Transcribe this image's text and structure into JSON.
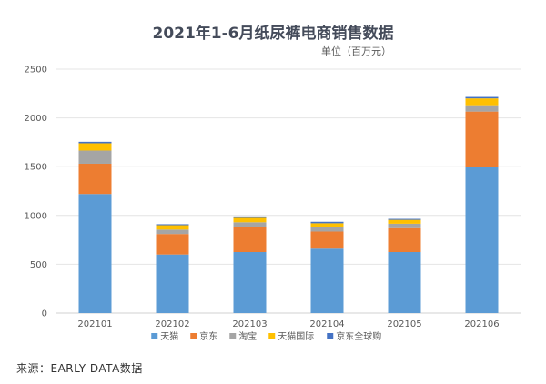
{
  "chart_data": {
    "type": "bar",
    "stacked": true,
    "title": "2021年1-6月纸尿裤电商销售数据",
    "unit": "单位（百万元）",
    "categories": [
      "202101",
      "202102",
      "202103",
      "202104",
      "202105",
      "202106"
    ],
    "y_ticks": [
      "0",
      "500",
      "1000",
      "1500",
      "2000",
      "2500"
    ],
    "ylim": [
      0,
      2500
    ],
    "grid": true,
    "legend_position": "bottom",
    "series": [
      {
        "name": "天猫",
        "color": "#5b9bd5",
        "values": [
          1220,
          600,
          625,
          660,
          625,
          1500
        ]
      },
      {
        "name": "京东",
        "color": "#ed7d31",
        "values": [
          310,
          210,
          260,
          175,
          245,
          565
        ]
      },
      {
        "name": "淘宝",
        "color": "#a5a5a5",
        "values": [
          135,
          45,
          45,
          45,
          45,
          65
        ]
      },
      {
        "name": "天猫国际",
        "color": "#ffc000",
        "values": [
          75,
          45,
          45,
          40,
          40,
          70
        ]
      },
      {
        "name": "京东全球购",
        "color": "#4472c4",
        "values": [
          15,
          10,
          15,
          15,
          10,
          15
        ]
      }
    ]
  },
  "source": "来源：EARLY DATA数据"
}
